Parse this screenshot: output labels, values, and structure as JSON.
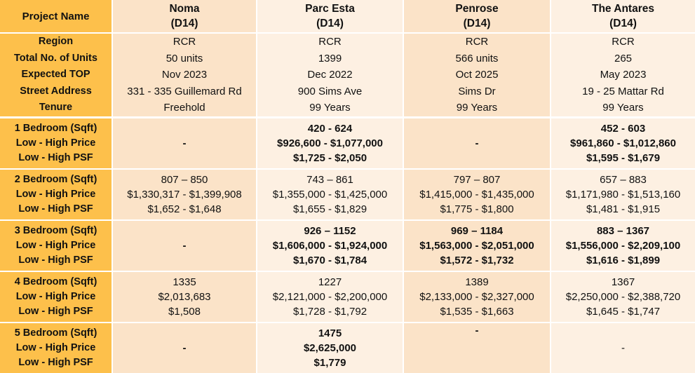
{
  "header": {
    "label": "Project Name",
    "projects": [
      {
        "name": "Noma",
        "district": "(D14)"
      },
      {
        "name": "Parc Esta",
        "district": "(D14)"
      },
      {
        "name": "Penrose",
        "district": "(D14)"
      },
      {
        "name": "The Antares",
        "district": "(D14)"
      }
    ]
  },
  "basic_rows": [
    {
      "label": "Region",
      "values": [
        "RCR",
        "RCR",
        "RCR",
        "RCR"
      ]
    },
    {
      "label": "Total No. of Units",
      "values": [
        "50 units",
        "1399",
        "566 units",
        "265"
      ]
    },
    {
      "label": "Expected TOP",
      "values": [
        "Nov 2023",
        "Dec 2022",
        "Oct 2025",
        "May 2023"
      ]
    },
    {
      "label": "Street Address",
      "values": [
        "331 - 335 Guillemard Rd",
        "900 Sims Ave",
        "Sims Dr",
        "19 - 25 Mattar Rd"
      ]
    },
    {
      "label": "Tenure",
      "values": [
        "Freehold",
        "99 Years",
        "99 Years",
        "99 Years"
      ]
    }
  ],
  "bedroom_groups": [
    {
      "labels": [
        "1 Bedroom (Sqft)",
        "Low - High Price",
        "Low - High PSF"
      ],
      "cells": [
        {
          "lines": [
            "-"
          ],
          "bold": true
        },
        {
          "lines": [
            "420 - 624",
            "$926,600 - $1,077,000",
            "$1,725 - $2,050"
          ],
          "bold": true
        },
        {
          "lines": [
            "-"
          ],
          "bold": true
        },
        {
          "lines": [
            "452 - 603",
            "$961,860 - $1,012,860",
            "$1,595 - $1,679"
          ],
          "bold": true
        }
      ]
    },
    {
      "labels": [
        "2 Bedroom (Sqft)",
        "Low - High Price",
        "Low - High PSF"
      ],
      "cells": [
        {
          "lines": [
            "807 – 850",
            "$1,330,317 - $1,399,908",
            "$1,652 - $1,648"
          ],
          "bold": false
        },
        {
          "lines": [
            "743 – 861",
            "$1,355,000 - $1,425,000",
            "$1,655 - $1,829"
          ],
          "bold": false
        },
        {
          "lines": [
            "797 – 807",
            "$1,415,000 - $1,435,000",
            "$1,775 - $1,800"
          ],
          "bold": false
        },
        {
          "lines": [
            "657 – 883",
            "$1,171,980 - $1,513,160",
            "$1,481 - $1,915"
          ],
          "bold": false
        }
      ]
    },
    {
      "labels": [
        "3 Bedroom (Sqft)",
        "Low - High Price",
        "Low - High PSF"
      ],
      "cells": [
        {
          "lines": [
            "-"
          ],
          "bold": true
        },
        {
          "lines": [
            "926 – 1152",
            "$1,606,000 - $1,924,000",
            "$1,670 - $1,784"
          ],
          "bold": true
        },
        {
          "lines": [
            "969 – 1184",
            "$1,563,000 - $2,051,000",
            "$1,572 - $1,732"
          ],
          "bold": true
        },
        {
          "lines": [
            "883 – 1367",
            "$1,556,000 - $2,209,100",
            "$1,616 - $1,899"
          ],
          "bold": true
        }
      ]
    },
    {
      "labels": [
        "4 Bedroom (Sqft)",
        "Low - High Price",
        "Low - High PSF"
      ],
      "cells": [
        {
          "lines": [
            "1335",
            "$2,013,683",
            "$1,508"
          ],
          "bold": false
        },
        {
          "lines": [
            "1227",
            "$2,121,000 - $2,200,000",
            "$1,728 - $1,792"
          ],
          "bold": false
        },
        {
          "lines": [
            "1389",
            "$2,133,000 - $2,327,000",
            "$1,535 - $1,663"
          ],
          "bold": false
        },
        {
          "lines": [
            "1367",
            "$2,250,000 - $2,388,720",
            "$1,645 - $1,747"
          ],
          "bold": false
        }
      ]
    },
    {
      "labels": [
        "5 Bedroom (Sqft)",
        "Low - High Price",
        "Low - High PSF"
      ],
      "cells": [
        {
          "lines": [
            "-"
          ],
          "bold": true
        },
        {
          "lines": [
            "1475",
            "$2,625,000",
            "$1,779"
          ],
          "bold": true
        },
        {
          "lines": [
            "-"
          ],
          "bold": true
        },
        {
          "lines": [
            "-"
          ],
          "bold": false
        }
      ]
    }
  ],
  "colors": {
    "label_bg": "#FDC04B",
    "band_dark": "#FBE3C8",
    "band_light": "#FDF0E2",
    "text": "#111111"
  }
}
